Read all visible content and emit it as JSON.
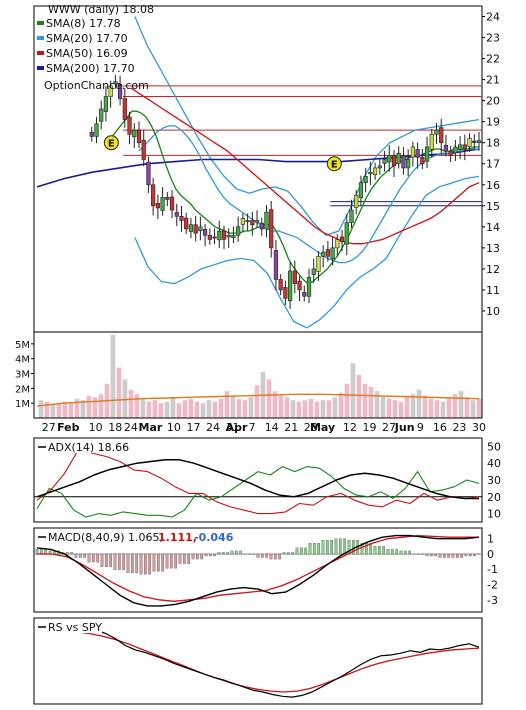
{
  "chart_data": [
    {
      "type": "line",
      "panel": "price",
      "title": "WWW (daily) 18.08",
      "watermark": "OptionChance.com",
      "legend_placement": "top-left",
      "legend": [
        {
          "label": "SMA(8) 17.78",
          "color": "#118811"
        },
        {
          "label": "SMA(20) 17.70",
          "color": "#3399dd"
        },
        {
          "label": "SMA(50) 16.09",
          "color": "#cc1111"
        },
        {
          "label": "SMA(200) 17.70",
          "color": "#1a1a99"
        }
      ],
      "y_ticks": [
        "24",
        "23",
        "22",
        "21",
        "20",
        "19",
        "18",
        "17",
        "16",
        "15",
        "14",
        "13",
        "12",
        "11",
        "10"
      ],
      "ylim": [
        9,
        24.5
      ],
      "x_labels": [
        {
          "t": 3,
          "text": "27"
        },
        {
          "t": 8,
          "text": "Feb"
        },
        {
          "t": 15,
          "text": "10"
        },
        {
          "t": 20,
          "text": "18"
        },
        {
          "t": 24,
          "text": "24"
        },
        {
          "t": 29,
          "text": "Mar"
        },
        {
          "t": 35,
          "text": "10"
        },
        {
          "t": 40,
          "text": "17"
        },
        {
          "t": 45,
          "text": "24"
        },
        {
          "t": 50,
          "text": "31"
        },
        {
          "t": 51,
          "text": "Apr"
        },
        {
          "t": 55,
          "text": "7"
        },
        {
          "t": 60,
          "text": "14"
        },
        {
          "t": 65,
          "text": "21"
        },
        {
          "t": 70,
          "text": "28"
        },
        {
          "t": 73,
          "text": "May"
        },
        {
          "t": 80,
          "text": "12"
        },
        {
          "t": 85,
          "text": "19"
        },
        {
          "t": 90,
          "text": "27"
        },
        {
          "t": 94,
          "text": "Jun"
        },
        {
          "t": 98,
          "text": "9"
        },
        {
          "t": 103,
          "text": "16"
        },
        {
          "t": 108,
          "text": "23"
        },
        {
          "t": 113,
          "text": "30"
        }
      ],
      "bold_x_labels": [
        "Feb",
        "Mar",
        "Apr",
        "May",
        "Jun"
      ],
      "horizontal_levels_red": [
        20.2,
        20.7,
        18.6,
        17.4
      ],
      "horizontal_levels_blue": [
        15.0,
        15.2
      ],
      "earnings_markers": [
        {
          "t": 19,
          "y": 18.0,
          "text": "E"
        },
        {
          "t": 76,
          "y": 17.0,
          "text": "E"
        }
      ],
      "close": [
        18.3,
        18.9,
        19.6,
        20.2,
        20.7,
        20.9,
        20.1,
        19.1,
        18.4,
        18.6,
        18.0,
        17.2,
        16.0,
        15.0,
        14.9,
        15.4,
        15.3,
        14.8,
        14.5,
        14.3,
        13.9,
        14.1,
        13.7,
        14.0,
        13.6,
        13.4,
        13.5,
        13.8,
        13.4,
        13.6,
        13.6,
        14.0,
        14.4,
        14.3,
        14.1,
        14.3,
        13.9,
        14.7,
        13.0,
        11.5,
        11.0,
        10.6,
        11.9,
        11.3,
        11.0,
        10.7,
        11.6,
        12.0,
        12.6,
        12.8,
        12.6,
        13.0,
        13.4,
        13.3,
        14.2,
        14.8,
        15.5,
        16.1,
        16.4,
        16.6,
        16.8,
        16.9,
        17.2,
        17.4,
        16.9,
        17.5,
        16.8,
        17.2,
        17.8,
        17.3,
        17.0,
        17.8,
        18.4,
        18.6,
        18.0,
        17.6,
        17.4,
        17.8,
        17.9,
        17.7,
        18.2,
        18.0,
        18.1
      ],
      "sma8": [
        18.0,
        18.3,
        18.6,
        18.9,
        19.2,
        19.5,
        19.5,
        19.4,
        19.2,
        18.8,
        18.3,
        17.6,
        16.9,
        16.3,
        15.8,
        15.5,
        15.3,
        15.1,
        14.8,
        14.6,
        14.4,
        14.2,
        14.0,
        13.9,
        13.8,
        13.7,
        13.7,
        13.7,
        13.8,
        13.8,
        13.9,
        14.0,
        14.1,
        14.1,
        14.0,
        13.6,
        13.1,
        12.5,
        12.1,
        11.8,
        11.5,
        11.3,
        11.4,
        11.6,
        11.8,
        12.0,
        12.3,
        12.6,
        13.0,
        13.4,
        13.9,
        14.4,
        14.9,
        15.4,
        15.8,
        16.1,
        16.4,
        16.6,
        16.8,
        17.0,
        17.1,
        17.2,
        17.3,
        17.4,
        17.4,
        17.5,
        17.6,
        17.7,
        17.7,
        17.6,
        17.6,
        17.7,
        17.7,
        17.7,
        17.7,
        17.8,
        17.8
      ],
      "sma20": [
        17.6,
        17.9,
        18.2,
        18.5,
        18.7,
        18.8,
        18.8,
        18.6,
        18.3,
        17.9,
        17.4,
        16.8,
        16.3,
        15.8,
        15.4,
        15.1,
        14.9,
        14.7,
        14.5,
        14.3,
        14.1,
        13.9,
        13.8,
        13.8,
        13.7,
        13.6,
        13.5,
        13.3,
        13.1,
        12.9,
        12.7,
        12.5,
        12.4,
        12.3,
        12.3,
        12.4,
        12.6,
        12.9,
        13.3,
        13.8,
        14.3,
        14.8,
        15.3,
        15.8,
        16.2,
        16.6,
        16.9,
        17.1,
        17.3,
        17.4,
        17.5,
        17.5,
        17.6,
        17.6,
        17.7,
        17.7,
        17.7
      ],
      "sma50": [
        20.6,
        20.3,
        20.0,
        19.7,
        19.4,
        19.1,
        18.8,
        18.5,
        18.2,
        17.9,
        17.6,
        17.2,
        16.8,
        16.4,
        16.0,
        15.6,
        15.2,
        14.8,
        14.4,
        14.0,
        13.7,
        13.5,
        13.3,
        13.2,
        13.2,
        13.3,
        13.4,
        13.6,
        13.8,
        14.0,
        14.2,
        14.4,
        14.7,
        15.1,
        15.5,
        15.9,
        16.1
      ],
      "sma200": [
        15.9,
        16.3,
        16.6,
        16.8,
        17.0,
        17.1,
        17.2,
        17.2,
        17.2,
        17.1,
        17.1,
        17.1,
        17.2,
        17.3,
        17.4,
        17.5,
        17.7
      ],
      "bollinger_upper": [
        24.0,
        22.6,
        21.5,
        20.4,
        19.3,
        18.2,
        17.2,
        16.4,
        15.8,
        15.6,
        15.8,
        15.9,
        15.7,
        15.0,
        14.2,
        13.6,
        13.8,
        15.0,
        16.4,
        17.4,
        18.0,
        18.3,
        18.6,
        18.7,
        18.8,
        18.9,
        19.0,
        19.1
      ],
      "bollinger_lower": [
        13.5,
        12.1,
        11.4,
        11.3,
        11.6,
        12.0,
        12.2,
        12.4,
        12.5,
        12.4,
        11.8,
        10.6,
        9.5,
        9.2,
        9.6,
        10.2,
        11.0,
        11.6,
        12.0,
        12.5,
        13.6,
        14.6,
        15.5,
        15.9,
        16.1,
        16.3,
        16.4
      ]
    },
    {
      "type": "bar",
      "panel": "volume",
      "y_ticks": [
        "5M",
        "4M",
        "3M",
        "2M",
        "1M"
      ],
      "ylim": [
        0,
        5800000
      ],
      "values": [
        1.2,
        1.1,
        0.9,
        1.0,
        1.1,
        1.0,
        1.3,
        1.2,
        1.5,
        1.4,
        1.6,
        2.3,
        5.6,
        3.4,
        2.6,
        1.9,
        1.6,
        1.3,
        1.1,
        1.2,
        1.0,
        1.1,
        1.4,
        1.0,
        1.2,
        1.3,
        1.1,
        1.0,
        1.2,
        1.1,
        1.3,
        1.8,
        1.5,
        1.3,
        1.2,
        1.4,
        2.2,
        3.1,
        2.6,
        1.8,
        1.5,
        1.4,
        1.2,
        1.1,
        1.2,
        1.3,
        1.1,
        1.2,
        1.2,
        1.4,
        1.7,
        2.3,
        3.7,
        2.9,
        2.3,
        2.1,
        1.8,
        1.5,
        1.3,
        1.2,
        1.1,
        1.4,
        1.6,
        1.9,
        1.5,
        1.3,
        1.2,
        1.1,
        1.3,
        1.6,
        1.8,
        1.4,
        1.2,
        1.3
      ],
      "average": [
        0.8,
        1.0,
        1.1,
        1.2,
        1.3,
        1.35,
        1.4,
        1.45,
        1.5,
        1.55,
        1.6,
        1.6,
        1.55,
        1.5,
        1.45,
        1.4,
        1.35,
        1.3
      ]
    },
    {
      "type": "line",
      "panel": "ADX",
      "label": "ADX(14) 18.66",
      "y_ticks": [
        "50",
        "40",
        "30",
        "20",
        "10"
      ],
      "ylim": [
        5,
        55
      ],
      "adx": [
        20,
        23,
        26,
        29,
        33,
        36,
        38,
        40,
        41,
        42,
        42,
        40,
        37,
        34,
        31,
        28,
        24,
        21,
        20,
        22,
        26,
        30,
        33,
        34,
        33,
        31,
        28,
        25,
        22,
        20,
        19,
        19
      ],
      "plus_di": [
        13,
        25,
        22,
        12,
        8,
        10,
        9,
        11,
        10,
        9,
        9,
        8,
        12,
        22,
        18,
        20,
        25,
        30,
        35,
        33,
        38,
        35,
        38,
        37,
        32,
        25,
        21,
        20,
        23,
        19,
        25,
        35,
        23,
        24,
        26,
        30,
        28
      ],
      "minus_di": [
        18,
        24,
        34,
        48,
        46,
        44,
        41,
        36,
        35,
        31,
        26,
        22,
        22,
        17,
        14,
        12,
        10,
        10,
        11,
        16,
        15,
        20,
        22,
        18,
        15,
        14,
        18,
        16,
        22,
        18,
        20,
        19,
        20
      ]
    },
    {
      "type": "line",
      "panel": "MACD",
      "label": "MACD(8,40,9) 1.065,",
      "values_text": [
        "1.111,",
        "-0.046"
      ],
      "values_colors": [
        "#cc1111",
        "#3366cc"
      ],
      "y_ticks": [
        "1",
        "0",
        "-1",
        "-2",
        "-3"
      ],
      "ylim": [
        -3.8,
        1.7
      ],
      "macd": [
        0.4,
        0.3,
        0.0,
        -0.6,
        -1.3,
        -2.0,
        -2.7,
        -3.2,
        -3.4,
        -3.4,
        -3.3,
        -3.1,
        -2.8,
        -2.5,
        -2.3,
        -2.2,
        -2.3,
        -2.6,
        -2.5,
        -2.0,
        -1.4,
        -0.7,
        -0.1,
        0.4,
        0.8,
        1.1,
        1.2,
        1.2,
        1.1,
        1.0,
        1.0,
        1.0,
        1.1
      ],
      "signal": [
        0.0,
        0.0,
        -0.2,
        -0.7,
        -1.3,
        -1.9,
        -2.4,
        -2.8,
        -3.0,
        -3.1,
        -3.0,
        -2.9,
        -2.7,
        -2.6,
        -2.5,
        -2.4,
        -2.1,
        -1.7,
        -1.2,
        -0.7,
        -0.2,
        0.3,
        0.7,
        1.0,
        1.1,
        1.2,
        1.15,
        1.1,
        1.1,
        1.1
      ],
      "histogram": [
        0.3,
        0.2,
        0.1,
        -0.2,
        -0.5,
        -0.8,
        -1.0,
        -1.2,
        -1.3,
        -1.1,
        -0.9,
        -0.6,
        -0.3,
        -0.1,
        0.1,
        0.2,
        0.0,
        -0.2,
        -0.3,
        0.1,
        0.4,
        0.7,
        0.9,
        1.0,
        0.9,
        0.7,
        0.5,
        0.3,
        0.2,
        0.0,
        -0.1,
        -0.2,
        -0.2,
        -0.1,
        0.0
      ]
    },
    {
      "type": "line",
      "panel": "relative-strength",
      "label": "RS vs SPY",
      "ylim": [
        0,
        10
      ],
      "rs": [
        8.6,
        8.9,
        8.6,
        8.2,
        7.6,
        6.8,
        6.3,
        6.0,
        5.6,
        5.2,
        4.7,
        4.3,
        3.9,
        3.5,
        3.1,
        2.8,
        2.4,
        2.0,
        1.6,
        1.4,
        1.1,
        0.9,
        0.8,
        1.0,
        1.4,
        2.0,
        2.6,
        3.2,
        3.9,
        4.6,
        5.2,
        5.6,
        5.7,
        5.9,
        6.2,
        6.0,
        6.4,
        6.3,
        6.5,
        6.8,
        7.0,
        6.6
      ],
      "rs_average": [
        8.4,
        8.2,
        7.9,
        7.5,
        7.0,
        6.4,
        5.8,
        5.2,
        4.6,
        4.0,
        3.4,
        2.9,
        2.4,
        2.0,
        1.7,
        1.5,
        1.4,
        1.5,
        1.8,
        2.3,
        2.9,
        3.5,
        4.1,
        4.6,
        5.0,
        5.3,
        5.6,
        5.9,
        6.1,
        6.3,
        6.4,
        6.5
      ]
    }
  ]
}
